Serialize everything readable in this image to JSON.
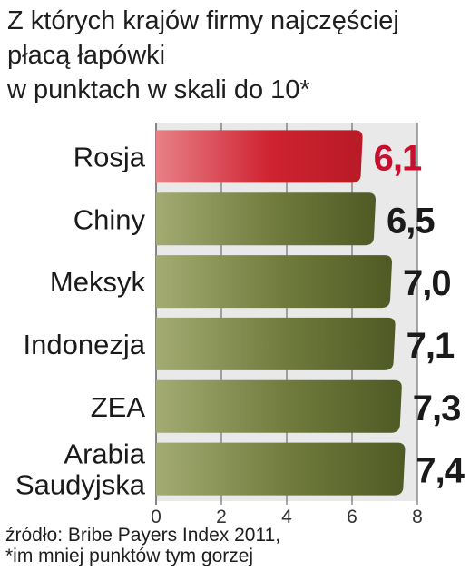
{
  "chart_data": {
    "type": "bar",
    "orientation": "horizontal",
    "title_lines": [
      "Z których krajów firmy najczęściej",
      "płacą łapówki",
      "w punktach w skali do 10*"
    ],
    "categories": [
      [
        "Rosja"
      ],
      [
        "Chiny"
      ],
      [
        "Meksyk"
      ],
      [
        "Indonezja"
      ],
      [
        "ZEA"
      ],
      [
        "Arabia",
        "Saudyjska"
      ]
    ],
    "values": [
      6.1,
      6.5,
      7.0,
      7.1,
      7.3,
      7.4
    ],
    "value_labels": [
      "6,1",
      "6,5",
      "7,0",
      "7,1",
      "7,3",
      "7,4"
    ],
    "highlight_index": 0,
    "xlim": [
      0,
      8
    ],
    "x_ticks": [
      0,
      2,
      4,
      6,
      8
    ],
    "grid": true,
    "colors": {
      "bar": "#6f7a3c",
      "bar_light": "#a3ab72",
      "bar_dark": "#4f5a24",
      "highlight": "#cf2331",
      "highlight_light": "#e88088",
      "highlight_label": "#c8102e",
      "label": "#1a1a1a",
      "grid": "#555555",
      "plot_bg": "#e9e9e9"
    }
  },
  "source_lines": [
    "źródło: Bribe Payers Index 2011,",
    "*im mniej punktów tym gorzej"
  ]
}
